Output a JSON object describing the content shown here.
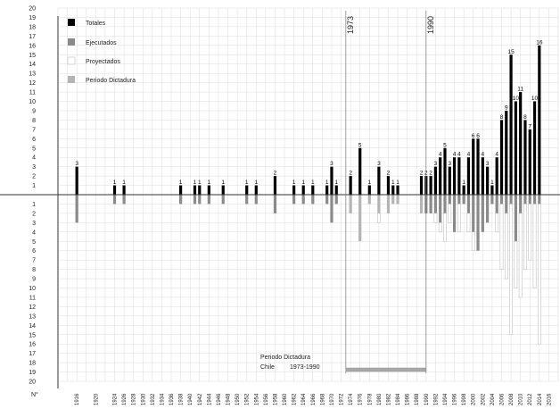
{
  "chart_data": {
    "type": "bar",
    "xlabel": "",
    "ylabel": "",
    "y_axis_label": "N°",
    "ylim_up": [
      0,
      20
    ],
    "ylim_down": [
      0,
      20
    ],
    "grid": true,
    "legend_position": "top-left",
    "legend": [
      {
        "label": "Totales",
        "color": "#000000"
      },
      {
        "label": "Ejecutados",
        "color": "#8a8a8a"
      },
      {
        "label": "Proyectados",
        "color": "#ffffff"
      },
      {
        "label": "Periodo Dictadura",
        "color": "#b4b4b4"
      }
    ],
    "x_tick_labels": [
      "1916",
      "1920",
      "1924",
      "1926",
      "1928",
      "1930",
      "1932",
      "1934",
      "1936",
      "1938",
      "1940",
      "1942",
      "1944",
      "1946",
      "1948",
      "1950",
      "1952",
      "1954",
      "1956",
      "1958",
      "1960",
      "1962",
      "1964",
      "1966",
      "1968",
      "1970",
      "1972",
      "1974",
      "1976",
      "1978",
      "1980",
      "1982",
      "1984",
      "1986",
      "1988",
      "1990",
      "1992",
      "1994",
      "1996",
      "1998",
      "2000",
      "2002",
      "2004",
      "2006",
      "2008",
      "2010",
      "2012",
      "2014",
      "2016"
    ],
    "markers": [
      {
        "label": "1973",
        "year": 1973
      },
      {
        "label": "1990",
        "year": 1990
      }
    ],
    "dictatorship_period": {
      "title": "Periodo Dictadura",
      "label": "Chile",
      "range_label": "1973-1990",
      "start": 1973,
      "end": 1990
    },
    "series": [
      {
        "name": "Totales",
        "x": [
          1916,
          1924,
          1926,
          1938,
          1941,
          1942,
          1944,
          1947,
          1952,
          1954,
          1958,
          1962,
          1964,
          1966,
          1969,
          1970,
          1971,
          1974,
          1976,
          1978,
          1980,
          1982,
          1983,
          1984,
          1989,
          1990,
          1991,
          1992,
          1993,
          1994,
          1995,
          1996,
          1997,
          1998,
          1999,
          2000,
          2001,
          2002,
          2003,
          2004,
          2005,
          2006,
          2007,
          2008,
          2009,
          2010,
          2011,
          2012,
          2013,
          2014
        ],
        "values": [
          3,
          1,
          1,
          1,
          1,
          1,
          1,
          1,
          1,
          1,
          2,
          1,
          1,
          1,
          1,
          3,
          1,
          2,
          5,
          1,
          3,
          2,
          1,
          1,
          2,
          2,
          2,
          3,
          4,
          5,
          3,
          4,
          4,
          1,
          4,
          6,
          6,
          4,
          3,
          1,
          4,
          8,
          9,
          15,
          10,
          11,
          8,
          7,
          10,
          16
        ]
      },
      {
        "name": "Ejecutados",
        "x": [
          1916,
          1924,
          1926,
          1938,
          1941,
          1942,
          1944,
          1947,
          1952,
          1954,
          1958,
          1962,
          1964,
          1966,
          1969,
          1970,
          1971,
          1974,
          1976,
          1978,
          1980,
          1982,
          1983,
          1984,
          1989,
          1990,
          1991,
          1992,
          1993,
          1994,
          1995,
          1996,
          1997,
          1998,
          1999,
          2000,
          2001,
          2002,
          2003,
          2004,
          2005,
          2006,
          2007,
          2008,
          2009,
          2010,
          2011,
          2012,
          2013,
          2014
        ],
        "values": [
          3,
          1,
          1,
          1,
          1,
          1,
          1,
          1,
          1,
          1,
          2,
          1,
          1,
          1,
          1,
          3,
          1,
          2,
          5,
          1,
          2,
          2,
          1,
          1,
          2,
          2,
          2,
          2,
          3,
          2,
          1,
          4,
          1,
          1,
          2,
          4,
          6,
          4,
          3,
          1,
          2,
          1,
          2,
          1,
          5,
          2,
          1,
          1,
          1,
          1
        ]
      },
      {
        "name": "Proyectados",
        "x": [
          1916,
          1924,
          1926,
          1938,
          1941,
          1942,
          1944,
          1947,
          1952,
          1954,
          1958,
          1962,
          1964,
          1966,
          1969,
          1970,
          1971,
          1974,
          1976,
          1978,
          1980,
          1982,
          1983,
          1984,
          1989,
          1990,
          1991,
          1992,
          1993,
          1994,
          1995,
          1996,
          1997,
          1998,
          1999,
          2000,
          2001,
          2002,
          2003,
          2004,
          2005,
          2006,
          2007,
          2008,
          2009,
          2010,
          2011,
          2012,
          2013,
          2014
        ],
        "values": [
          0,
          0,
          0,
          0,
          0,
          0,
          0,
          0,
          0,
          0,
          0,
          0,
          0,
          0,
          0,
          0,
          0,
          0,
          0,
          0,
          1,
          0,
          0,
          0,
          0,
          0,
          0,
          1,
          1,
          3,
          2,
          0,
          3,
          0,
          2,
          2,
          0,
          0,
          0,
          0,
          2,
          7,
          7,
          14,
          5,
          9,
          7,
          6,
          9,
          15
        ]
      }
    ]
  }
}
